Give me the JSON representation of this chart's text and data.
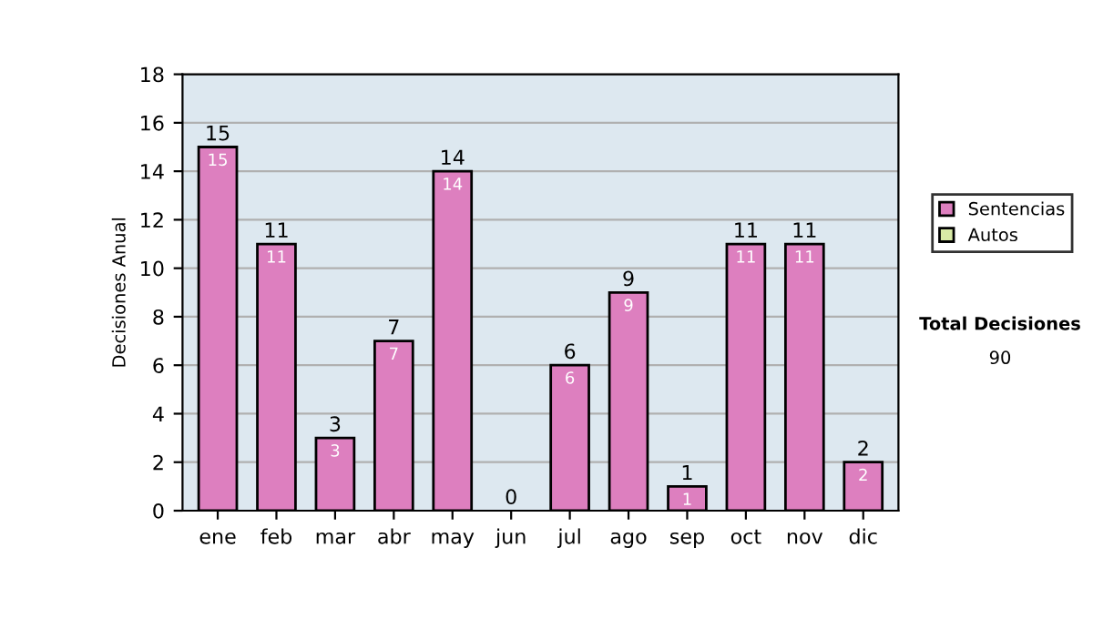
{
  "chart_data": {
    "type": "bar",
    "stacked": true,
    "ylabel": "Decisiones Anual",
    "categories": [
      "ene",
      "feb",
      "mar",
      "abr",
      "may",
      "jun",
      "jul",
      "ago",
      "sep",
      "oct",
      "nov",
      "dic"
    ],
    "series": [
      {
        "name": "Sentencias",
        "color": "#dd7fbf",
        "values": [
          15,
          11,
          3,
          7,
          14,
          0,
          6,
          9,
          1,
          11,
          11,
          2
        ],
        "value_labels": [
          "15",
          "11",
          "3",
          "7",
          "14",
          null,
          "6",
          "9",
          "1",
          "11",
          "11",
          "2"
        ]
      },
      {
        "name": "Autos",
        "color": "#d9eba6",
        "values": [
          0,
          0,
          0,
          0,
          0,
          0,
          0,
          0,
          0,
          0,
          0,
          0
        ]
      }
    ],
    "totals": [
      "15",
      "11",
      "3",
      "7",
      "14",
      "0",
      "6",
      "9",
      "1",
      "11",
      "11",
      "2"
    ],
    "ylim": [
      0,
      18
    ],
    "yticks": [
      0,
      2,
      4,
      6,
      8,
      10,
      12,
      14,
      16,
      18
    ],
    "grid": "y",
    "legend": "right",
    "annotations": [
      "Total Decisiones",
      "90"
    ]
  }
}
